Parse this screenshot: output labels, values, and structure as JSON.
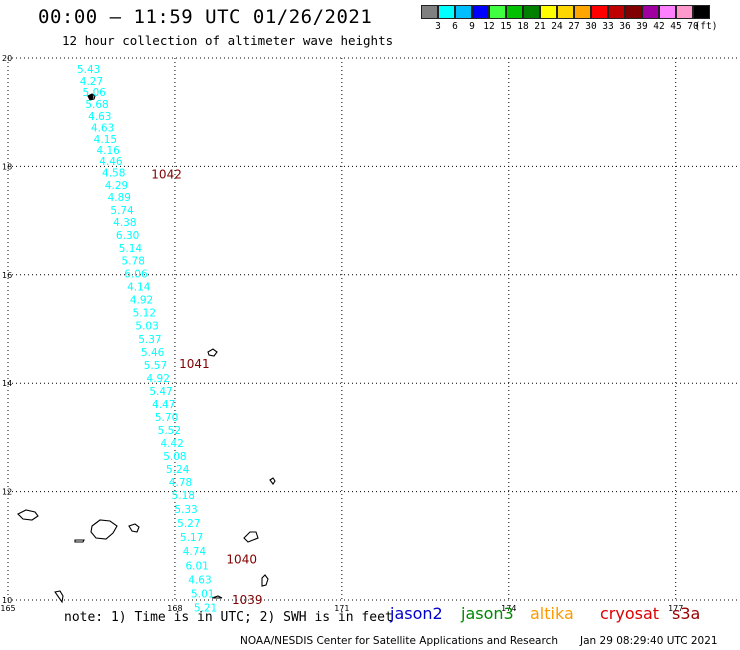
{
  "header": {
    "title": "00:00 – 11:59 UTC 01/26/2021",
    "subtitle": "12 hour collection of altimeter wave heights"
  },
  "legend": {
    "swatches": [
      {
        "color": "#808080"
      },
      {
        "color": "#00ffff"
      },
      {
        "color": "#00bfff"
      },
      {
        "color": "#0000ff"
      },
      {
        "color": "#40ff40"
      },
      {
        "color": "#00c000"
      },
      {
        "color": "#008000"
      },
      {
        "color": "#ffff00"
      },
      {
        "color": "#ffd700"
      },
      {
        "color": "#ffa500"
      },
      {
        "color": "#ff0000"
      },
      {
        "color": "#c00000"
      },
      {
        "color": "#800000"
      },
      {
        "color": "#a000a0"
      },
      {
        "color": "#ff80ff"
      },
      {
        "color": "#ff99cc"
      },
      {
        "color": "#000000"
      }
    ],
    "labels": [
      "3",
      "6",
      "9",
      "12",
      "15",
      "18",
      "21",
      "24",
      "27",
      "30",
      "33",
      "36",
      "39",
      "42",
      "45",
      "70",
      "(ft)"
    ]
  },
  "map_data": {
    "lon_ticks": [
      "165",
      "168",
      "171",
      "174",
      "177"
    ],
    "lat_ticks": [
      "20",
      "18",
      "16",
      "14",
      "12",
      "10"
    ],
    "lon_range": [
      165,
      179
    ],
    "lat_range": [
      10,
      20
    ],
    "grid": true,
    "observation_color": "#00ffff",
    "observations": [
      {
        "lon": 166.45,
        "lat": 19.8,
        "swh": "5.43"
      },
      {
        "lon": 166.5,
        "lat": 19.58,
        "swh": "4.27"
      },
      {
        "lon": 166.55,
        "lat": 19.37,
        "swh": "5.06"
      },
      {
        "lon": 166.6,
        "lat": 19.15,
        "swh": "5.68"
      },
      {
        "lon": 166.65,
        "lat": 18.93,
        "swh": "4.63"
      },
      {
        "lon": 166.7,
        "lat": 18.72,
        "swh": "4.63"
      },
      {
        "lon": 166.75,
        "lat": 18.51,
        "swh": "4.15"
      },
      {
        "lon": 166.8,
        "lat": 18.3,
        "swh": "4.16"
      },
      {
        "lon": 166.85,
        "lat": 18.1,
        "swh": "4.46"
      },
      {
        "lon": 166.9,
        "lat": 17.89,
        "swh": "4.58"
      },
      {
        "lon": 166.95,
        "lat": 17.66,
        "swh": "4.29"
      },
      {
        "lon": 167.0,
        "lat": 17.44,
        "swh": "4.89"
      },
      {
        "lon": 167.05,
        "lat": 17.2,
        "swh": "5.74"
      },
      {
        "lon": 167.1,
        "lat": 16.97,
        "swh": "4.38"
      },
      {
        "lon": 167.15,
        "lat": 16.73,
        "swh": "6.30"
      },
      {
        "lon": 167.2,
        "lat": 16.49,
        "swh": "5.14"
      },
      {
        "lon": 167.25,
        "lat": 16.26,
        "swh": "5.78"
      },
      {
        "lon": 167.3,
        "lat": 16.02,
        "swh": "6.06"
      },
      {
        "lon": 167.35,
        "lat": 15.78,
        "swh": "4.14"
      },
      {
        "lon": 167.4,
        "lat": 15.54,
        "swh": "4.92"
      },
      {
        "lon": 167.45,
        "lat": 15.3,
        "swh": "5.12"
      },
      {
        "lon": 167.5,
        "lat": 15.06,
        "swh": "5.03"
      },
      {
        "lon": 167.55,
        "lat": 14.82,
        "swh": "5.37"
      },
      {
        "lon": 167.6,
        "lat": 14.58,
        "swh": "5.46"
      },
      {
        "lon": 167.65,
        "lat": 14.34,
        "swh": "5.57"
      },
      {
        "lon": 167.7,
        "lat": 14.1,
        "swh": "4.92"
      },
      {
        "lon": 167.75,
        "lat": 13.86,
        "swh": "5.47"
      },
      {
        "lon": 167.8,
        "lat": 13.62,
        "swh": "4.47"
      },
      {
        "lon": 167.85,
        "lat": 13.38,
        "swh": "5.70"
      },
      {
        "lon": 167.9,
        "lat": 13.14,
        "swh": "5.52"
      },
      {
        "lon": 167.95,
        "lat": 12.9,
        "swh": "4.42"
      },
      {
        "lon": 168.0,
        "lat": 12.66,
        "swh": "5.08"
      },
      {
        "lon": 168.05,
        "lat": 12.42,
        "swh": "5.24"
      },
      {
        "lon": 168.1,
        "lat": 12.18,
        "swh": "4.78"
      },
      {
        "lon": 168.15,
        "lat": 11.94,
        "swh": "5.18"
      },
      {
        "lon": 168.2,
        "lat": 11.68,
        "swh": "5.33"
      },
      {
        "lon": 168.25,
        "lat": 11.42,
        "swh": "5.27"
      },
      {
        "lon": 168.3,
        "lat": 11.16,
        "swh": "5.17"
      },
      {
        "lon": 168.35,
        "lat": 10.9,
        "swh": "4.74"
      },
      {
        "lon": 168.4,
        "lat": 10.64,
        "swh": "6.01"
      },
      {
        "lon": 168.45,
        "lat": 10.38,
        "swh": "4.63"
      },
      {
        "lon": 168.5,
        "lat": 10.12,
        "swh": "5.01"
      },
      {
        "lon": 168.55,
        "lat": 9.86,
        "swh": "5.21"
      }
    ],
    "pressure_labels": [
      {
        "lon": 167.85,
        "lat": 17.85,
        "text": "1042"
      },
      {
        "lon": 168.35,
        "lat": 14.35,
        "text": "1041"
      },
      {
        "lon": 169.2,
        "lat": 10.75,
        "text": "1040"
      },
      {
        "lon": 169.3,
        "lat": 10.0,
        "text": "1039"
      }
    ],
    "pressure_color": "#800000"
  },
  "footer": {
    "note": "note: 1) Time is in UTC; 2) SWH is in feet",
    "satellites": [
      {
        "name": "jason2",
        "color": "#0000cc"
      },
      {
        "name": "jason3",
        "color": "#008800"
      },
      {
        "name": "altika",
        "color": "#ff9900"
      },
      {
        "name": "cryosat",
        "color": "#dd0000"
      },
      {
        "name": "s3a",
        "color": "#990000"
      }
    ],
    "credit": "NOAA/NESDIS Center for Satellite Applications and Research",
    "timestamp": "Jan 29 08:29:40 UTC 2021"
  }
}
